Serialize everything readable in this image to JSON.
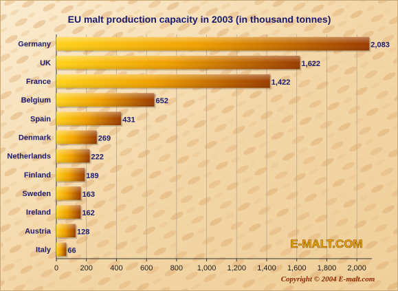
{
  "chart_data": {
    "type": "bar",
    "orientation": "horizontal",
    "title": "EU malt production capacity in 2003 (in thousand tonnes)",
    "categories": [
      "Germany",
      "UK",
      "France",
      "Belgium",
      "Spain",
      "Denmark",
      "Netherlands",
      "Finland",
      "Sweden",
      "Ireland",
      "Austria",
      "Italy"
    ],
    "values": [
      2083,
      1622,
      1422,
      652,
      431,
      269,
      222,
      189,
      163,
      162,
      128,
      66
    ],
    "value_labels": [
      "2,083",
      "1,622",
      "1,422",
      "652",
      "431",
      "269",
      "222",
      "189",
      "163",
      "162",
      "128",
      "66"
    ],
    "xlim": [
      0,
      2100
    ],
    "x_ticks": [
      0,
      200,
      400,
      600,
      800,
      1000,
      1200,
      1400,
      1600,
      1800,
      2000
    ],
    "x_tick_labels": [
      "0",
      "200",
      "400",
      "600",
      "800",
      "1,000",
      "1,200",
      "1,400",
      "1,600",
      "1,800",
      "2,000"
    ],
    "grid": "vertical",
    "legend": "none"
  },
  "branding": {
    "watermark": "E-MALT.COM",
    "copyright": "Copyright © 2004 E-malt.com"
  },
  "colors": {
    "bar_start": "#ffd21a",
    "bar_mid": "#f0a000",
    "bar_end": "#9a3c00",
    "background_light": "#f7e4c2",
    "background_dark": "#e6b97e",
    "title": "#1a1a6e"
  }
}
